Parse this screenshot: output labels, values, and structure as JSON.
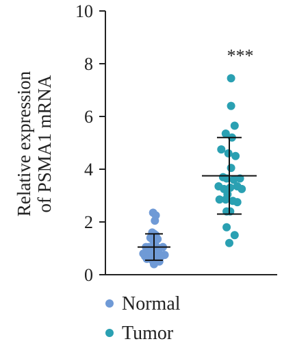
{
  "chart_data": {
    "type": "scatter",
    "ylabel_lines": [
      "Relative expression",
      "of PSMA1 mRNA"
    ],
    "ylim": [
      0,
      10
    ],
    "yticks": [
      0,
      2,
      4,
      6,
      8,
      10
    ],
    "ytick_labels": [
      "0",
      "2",
      "4",
      "6",
      "8",
      "10"
    ],
    "grid": false,
    "legend_position": "bottom-left",
    "series": [
      {
        "name": "Normal",
        "color": "#6f9ad6",
        "mean": 1.05,
        "sd_upper": 1.55,
        "sd_lower": 0.55,
        "points": [
          {
            "jitter": -0.05,
            "y": 2.35
          },
          {
            "jitter": 0.1,
            "y": 2.25
          },
          {
            "jitter": 0.05,
            "y": 2.05
          },
          {
            "jitter": -0.1,
            "y": 1.6
          },
          {
            "jitter": 0.0,
            "y": 1.55
          },
          {
            "jitter": 0.1,
            "y": 1.5
          },
          {
            "jitter": -0.2,
            "y": 1.4
          },
          {
            "jitter": 0.2,
            "y": 1.35
          },
          {
            "jitter": -0.05,
            "y": 1.3
          },
          {
            "jitter": 0.05,
            "y": 1.2
          },
          {
            "jitter": -0.45,
            "y": 1.05
          },
          {
            "jitter": -0.3,
            "y": 1.05
          },
          {
            "jitter": -0.1,
            "y": 1.0
          },
          {
            "jitter": 0.15,
            "y": 1.05
          },
          {
            "jitter": 0.3,
            "y": 1.0
          },
          {
            "jitter": 0.5,
            "y": 1.05
          },
          {
            "jitter": -0.35,
            "y": 0.9
          },
          {
            "jitter": 0.0,
            "y": 0.9
          },
          {
            "jitter": 0.25,
            "y": 0.85
          },
          {
            "jitter": -0.6,
            "y": 0.8
          },
          {
            "jitter": -0.15,
            "y": 0.8
          },
          {
            "jitter": 0.6,
            "y": 0.75
          },
          {
            "jitter": -0.5,
            "y": 0.7
          },
          {
            "jitter": -0.25,
            "y": 0.7
          },
          {
            "jitter": 0.05,
            "y": 0.7
          },
          {
            "jitter": 0.4,
            "y": 0.7
          },
          {
            "jitter": -0.4,
            "y": 0.6
          },
          {
            "jitter": 0.15,
            "y": 0.6
          },
          {
            "jitter": -0.1,
            "y": 0.55
          },
          {
            "jitter": 0.3,
            "y": 0.5
          },
          {
            "jitter": 0.0,
            "y": 0.4
          }
        ]
      },
      {
        "name": "Tumor",
        "color": "#2aa0b2",
        "mean": 3.75,
        "sd_upper": 5.2,
        "sd_lower": 2.3,
        "significance": "***",
        "points": [
          {
            "jitter": 0.1,
            "y": 7.45
          },
          {
            "jitter": 0.1,
            "y": 6.4
          },
          {
            "jitter": 0.3,
            "y": 5.65
          },
          {
            "jitter": -0.2,
            "y": 5.35
          },
          {
            "jitter": 0.15,
            "y": 5.2
          },
          {
            "jitter": -0.45,
            "y": 4.75
          },
          {
            "jitter": -0.05,
            "y": 4.6
          },
          {
            "jitter": 0.35,
            "y": 4.5
          },
          {
            "jitter": 0.1,
            "y": 4.05
          },
          {
            "jitter": -0.35,
            "y": 3.7
          },
          {
            "jitter": -0.15,
            "y": 3.65
          },
          {
            "jitter": 0.25,
            "y": 3.6
          },
          {
            "jitter": 0.6,
            "y": 3.65
          },
          {
            "jitter": -0.6,
            "y": 3.35
          },
          {
            "jitter": -0.3,
            "y": 3.25
          },
          {
            "jitter": 0.05,
            "y": 3.3
          },
          {
            "jitter": 0.45,
            "y": 3.35
          },
          {
            "jitter": 0.7,
            "y": 3.25
          },
          {
            "jitter": -0.1,
            "y": 3.05
          },
          {
            "jitter": -0.55,
            "y": 2.85
          },
          {
            "jitter": -0.2,
            "y": 2.85
          },
          {
            "jitter": 0.2,
            "y": 2.8
          },
          {
            "jitter": 0.45,
            "y": 2.75
          },
          {
            "jitter": -0.15,
            "y": 2.4
          },
          {
            "jitter": 0.05,
            "y": 2.4
          },
          {
            "jitter": -0.15,
            "y": 1.8
          },
          {
            "jitter": 0.3,
            "y": 1.5
          },
          {
            "jitter": 0.0,
            "y": 1.2
          }
        ]
      }
    ]
  }
}
